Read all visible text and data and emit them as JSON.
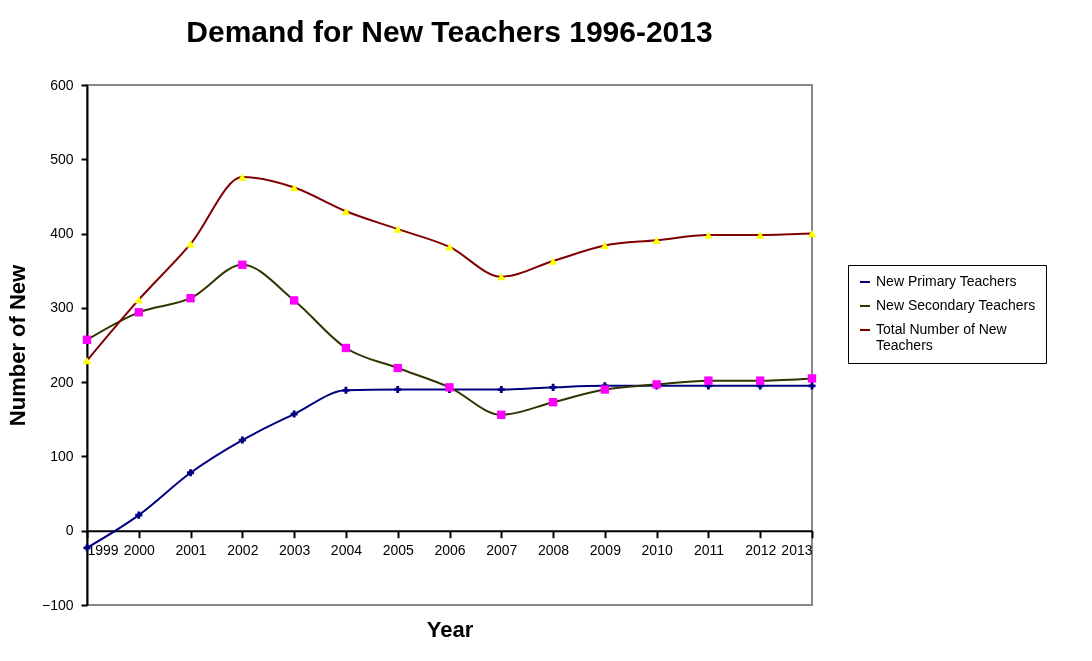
{
  "chart_data": {
    "type": "line",
    "title": "Demand for New Teachers 1996-2013",
    "xlabel": "Year",
    "ylabel": "Number of New",
    "categories": [
      "1999",
      "2000",
      "2001",
      "2002",
      "2003",
      "2004",
      "2005",
      "2006",
      "2007",
      "2008",
      "2009",
      "2010",
      "2011",
      "2012",
      "2013"
    ],
    "series": [
      {
        "name": "New Primary Teachers",
        "color": "#000080",
        "marker": "cross",
        "values": [
          -23,
          21,
          78,
          122,
          157,
          189,
          190,
          190,
          190,
          193,
          195,
          195,
          195,
          195,
          195
        ]
      },
      {
        "name": "New Secondary Teachers",
        "color": "#333300",
        "colors": [
          "#ff00ff",
          "#ff00ff",
          "#ff00ff",
          "#ff00ff",
          "#ff00ff",
          "#ff00ff",
          "#ff00ff",
          "#ff00ff",
          "#ff00ff",
          "#ff00ff",
          "#ff00ff",
          "#ff00ff",
          "#ff00ff",
          "#ff00ff",
          "#ff00ff"
        ],
        "marker": "square",
        "values": [
          257,
          294,
          313,
          358,
          310,
          246,
          219,
          193,
          156,
          173,
          190,
          197,
          202,
          202,
          205
        ]
      },
      {
        "name": "Total Number of New Teachers",
        "color": "#800000",
        "colors": [
          "#ffff00",
          "#ffff00",
          "#ffff00",
          "#ffff00",
          "#ffff00",
          "#ffff00",
          "#ffff00",
          "#ffff00",
          "#ffff00",
          "#ffff00",
          "#ffff00",
          "#ffff00",
          "#ffff00",
          "#ffff00",
          "#ffff00"
        ],
        "marker": "triangle",
        "values": [
          229,
          311,
          386,
          476,
          462,
          430,
          406,
          382,
          342,
          363,
          384,
          391,
          398,
          398,
          400
        ]
      }
    ],
    "ylim": [
      -100,
      600
    ],
    "yticks": [
      -100,
      0,
      100,
      200,
      300,
      400,
      500,
      600
    ],
    "grid": false,
    "legend": "right"
  }
}
